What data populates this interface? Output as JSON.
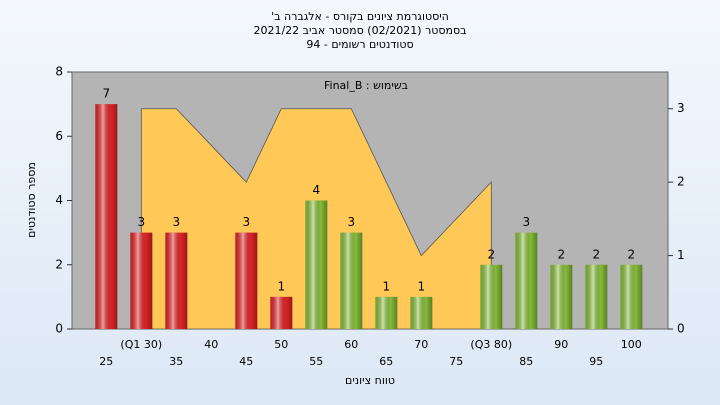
{
  "chart_data": {
    "type": "bar",
    "title": "היסטוגרמת ציונים בקורס - אלגברה ב'",
    "subtitle": "בסמסטר  (02/2021)  סמסטר אביב 2021/22",
    "subtitle2": "סטודנטים רשומים - 94",
    "annotation": "בשימוש : Final_B",
    "x_label": "טווח ציונים",
    "y_label": "מספר סטודנטים",
    "categories": [
      "25",
      "(Q1 30)",
      "35",
      "40",
      "45",
      "50",
      "55",
      "60",
      "65",
      "70",
      "75",
      "(Q3 80)",
      "85",
      "90",
      "95",
      "100"
    ],
    "values": [
      7,
      3,
      3,
      0,
      3,
      1,
      4,
      3,
      1,
      1,
      0,
      2,
      3,
      2,
      2,
      2
    ],
    "colors": [
      "#e8262a",
      "#e8262a",
      "#e8262a",
      "#e8262a",
      "#e8262a",
      "#e8262a",
      "#8cc43c",
      "#8cc43c",
      "#8cc43c",
      "#8cc43c",
      "#8cc43c",
      "#8cc43c",
      "#8cc43c",
      "#8cc43c",
      "#8cc43c",
      "#8cc43c"
    ],
    "area": {
      "color": "#ffc857",
      "axis": "y2",
      "values": [
        null,
        3,
        3,
        2.5,
        2,
        3,
        3,
        3,
        2,
        1,
        1.5,
        2,
        null,
        null,
        null,
        null
      ]
    },
    "ylim": [
      0,
      8
    ],
    "yticks": [
      0,
      2,
      4,
      6,
      8
    ],
    "y2lim": [
      0,
      3.5
    ],
    "y2ticks": [
      0,
      1,
      2,
      3
    ]
  }
}
